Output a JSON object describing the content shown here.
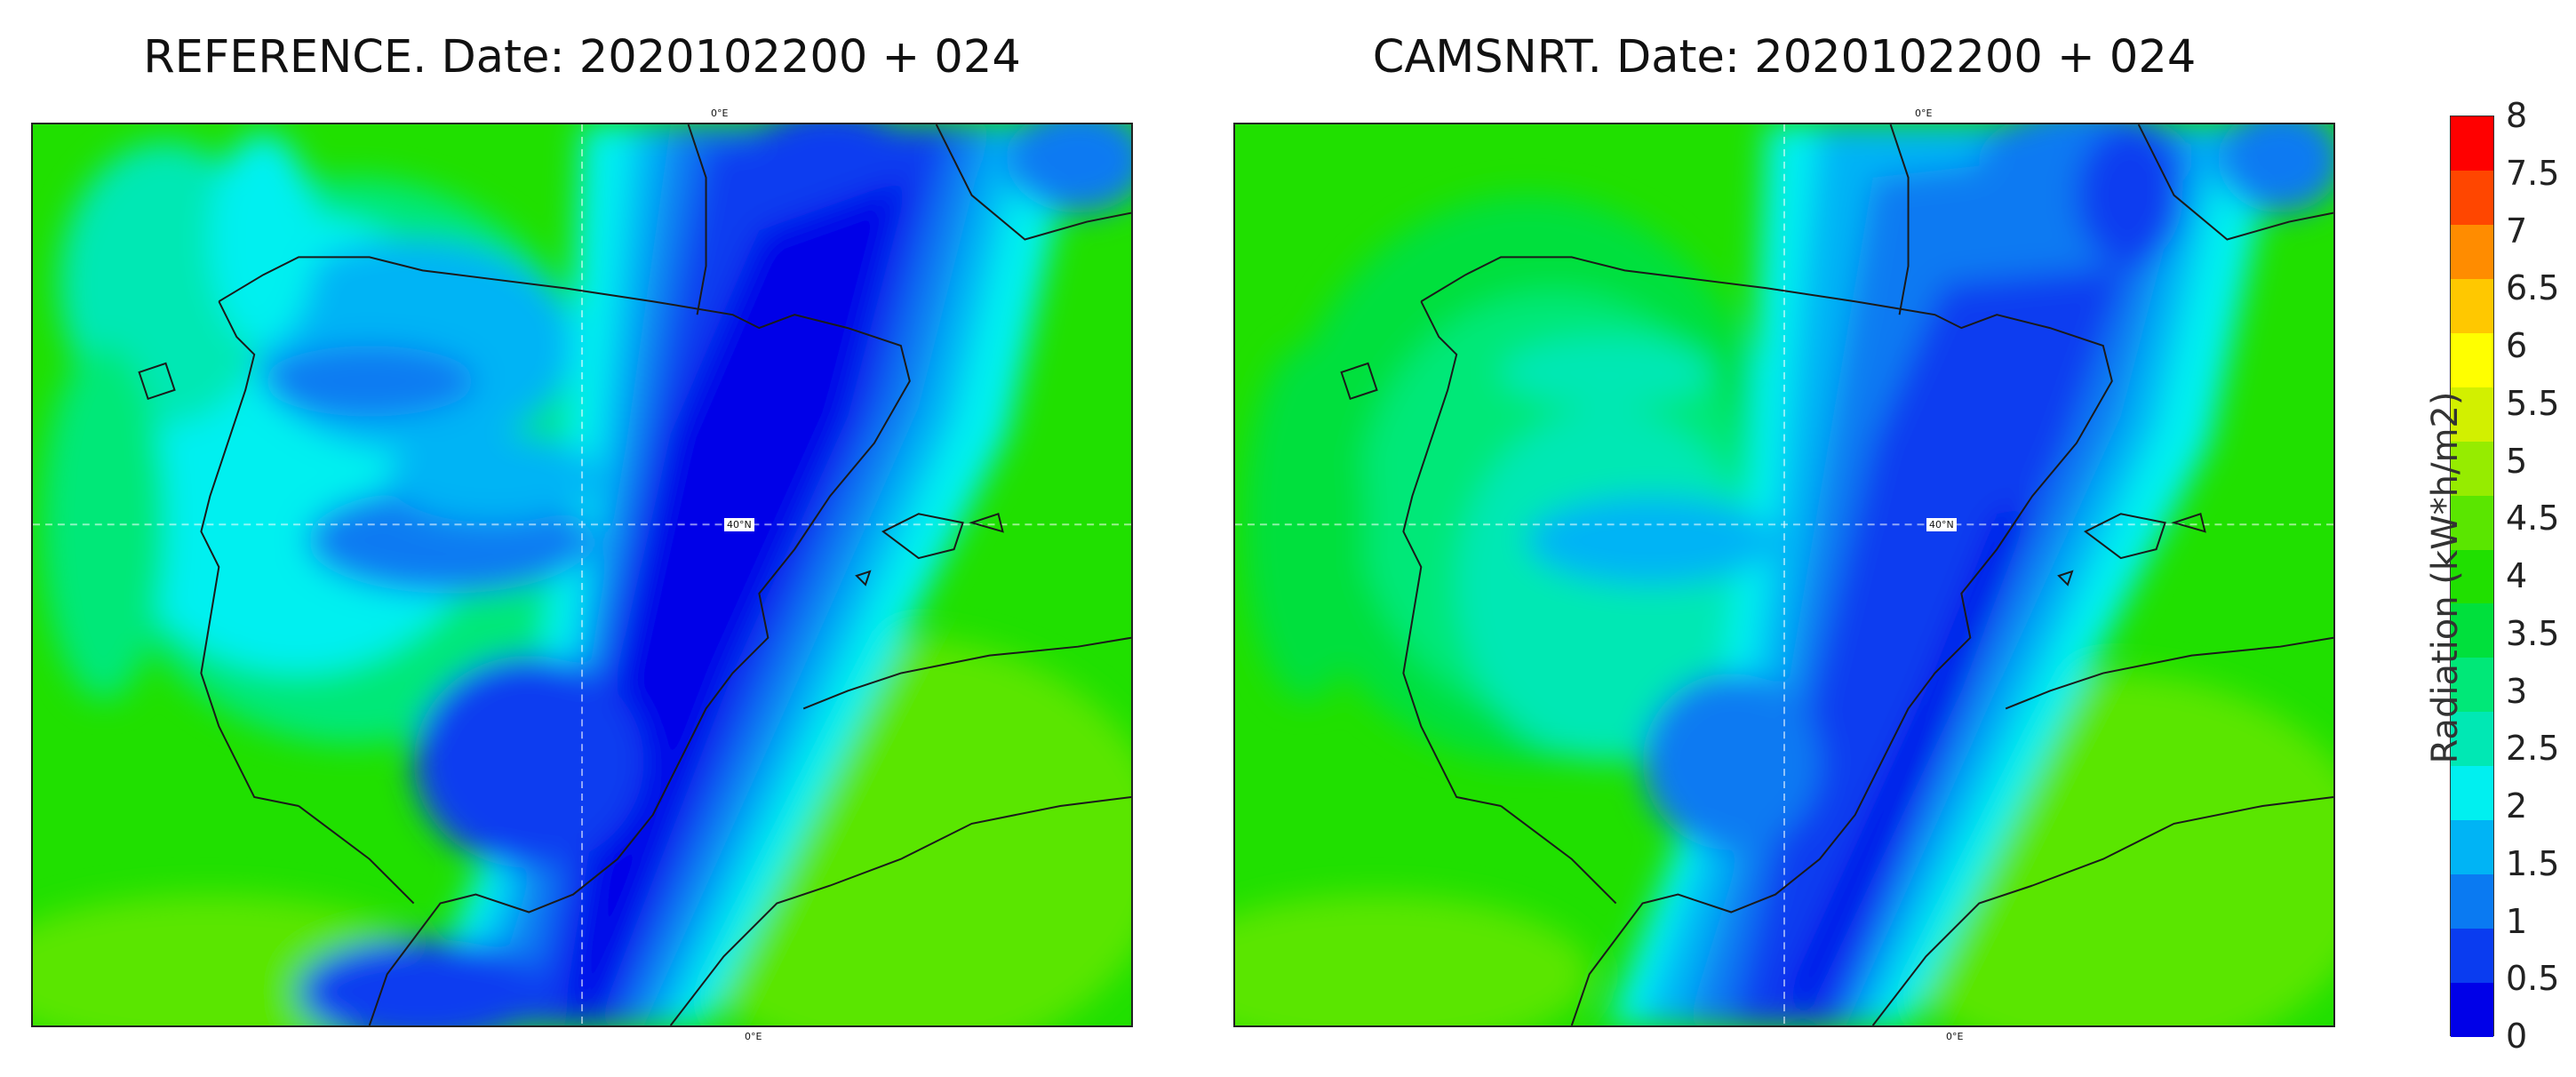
{
  "panels": [
    {
      "title": "REFERENCE. Date: 2020102200 + 024",
      "lon_label_top": "0°E",
      "lon_label_bottom": "0°E",
      "lat_label": "40°N"
    },
    {
      "title": "CAMSNRT. Date: 2020102200 + 024",
      "lon_label_top": "0°E",
      "lon_label_bottom": "0°E",
      "lat_label": "40°N"
    }
  ],
  "colorbar": {
    "label": "Radiation (kW*h/m2)",
    "ticks": [
      "0",
      "0.5",
      "1",
      "1.5",
      "2",
      "2.5",
      "3",
      "3.5",
      "4",
      "4.5",
      "5",
      "5.5",
      "6",
      "6.5",
      "7",
      "7.5",
      "8"
    ],
    "colors": [
      "#0000e8",
      "#0a3cf0",
      "#0a7af2",
      "#00b4f5",
      "#00f0f0",
      "#00e8b4",
      "#00e878",
      "#00e03c",
      "#20e000",
      "#5ae600",
      "#96ec00",
      "#d2f000",
      "#ffff00",
      "#ffc800",
      "#ff8c00",
      "#ff4600",
      "#ff0000"
    ]
  }
}
